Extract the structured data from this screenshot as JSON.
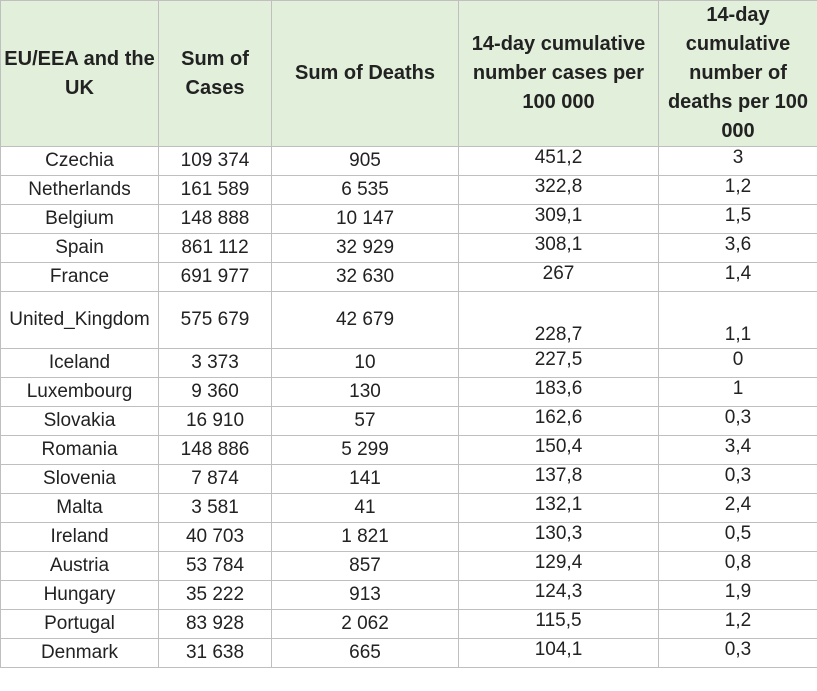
{
  "table": {
    "headers": [
      "EU/EEA and the UK",
      "Sum of Cases",
      "Sum of Deaths",
      "14-day cumulative number cases per 100 000",
      "14-day cumulative number of deaths per 100 000"
    ],
    "rows": [
      [
        "Czechia",
        "109 374",
        "905",
        "451,2",
        "3"
      ],
      [
        "Netherlands",
        "161 589",
        "6 535",
        "322,8",
        "1,2"
      ],
      [
        "Belgium",
        "148 888",
        "10 147",
        "309,1",
        "1,5"
      ],
      [
        "Spain",
        "861 112",
        "32 929",
        "308,1",
        "3,6"
      ],
      [
        "France",
        "691 977",
        "32 630",
        "267",
        "1,4"
      ],
      [
        "United_Kingdom",
        "575 679",
        "42 679",
        "228,7",
        "1,1"
      ],
      [
        "Iceland",
        "3 373",
        "10",
        "227,5",
        "0"
      ],
      [
        "Luxembourg",
        "9 360",
        "130",
        "183,6",
        "1"
      ],
      [
        "Slovakia",
        "16 910",
        "57",
        "162,6",
        "0,3"
      ],
      [
        "Romania",
        "148 886",
        "5 299",
        "150,4",
        "3,4"
      ],
      [
        "Slovenia",
        "7 874",
        "141",
        "137,8",
        "0,3"
      ],
      [
        "Malta",
        "3 581",
        "41",
        "132,1",
        "2,4"
      ],
      [
        "Ireland",
        "40 703",
        "1 821",
        "130,3",
        "0,5"
      ],
      [
        "Austria",
        "53 784",
        "857",
        "129,4",
        "0,8"
      ],
      [
        "Hungary",
        "35 222",
        "913",
        "124,3",
        "1,9"
      ],
      [
        "Portugal",
        "83 928",
        "2 062",
        "115,5",
        "1,2"
      ],
      [
        "Denmark",
        "31 638",
        "665",
        "104,1",
        "0,3"
      ]
    ]
  }
}
